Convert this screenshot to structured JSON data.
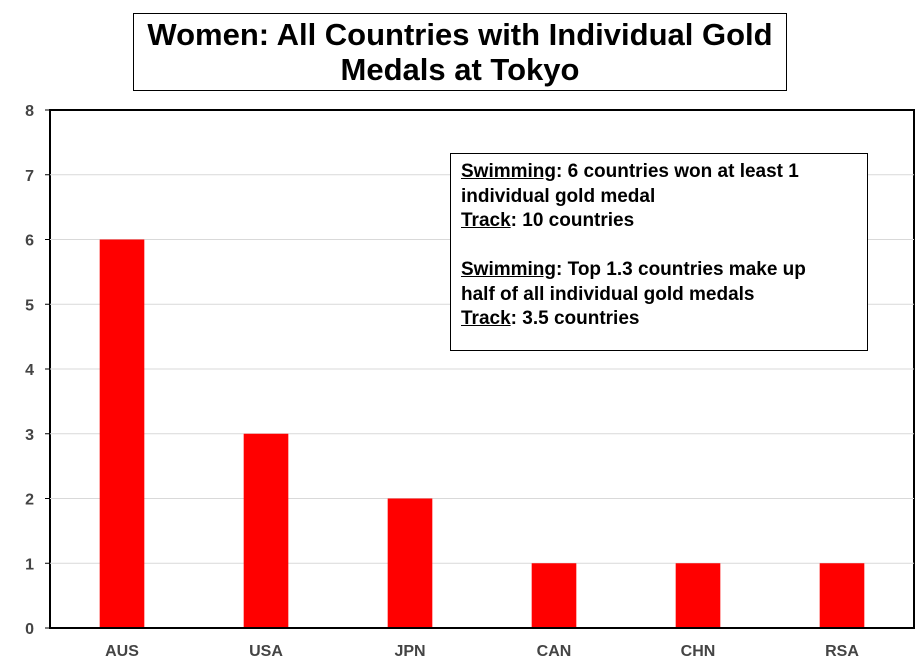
{
  "chart_data": {
    "type": "bar",
    "title_line1": "Women: All Countries with Individual Gold",
    "title_line2": "Medals at Tokyo",
    "xlabel": "",
    "ylabel": "",
    "categories": [
      "AUS",
      "USA",
      "JPN",
      "CAN",
      "CHN",
      "RSA"
    ],
    "values": [
      6,
      3,
      2,
      1,
      1,
      1
    ],
    "ylim": [
      0,
      8
    ],
    "yticks": [
      "0",
      "1",
      "2",
      "3",
      "4",
      "5",
      "6",
      "7",
      "8"
    ],
    "grid": true,
    "bar_color": "#ff0000",
    "annotation": {
      "p1_label": "Swimming",
      "p1_text": ":  6 countries won at least 1",
      "p1_text2": "individual gold medal",
      "p2_label": "Track",
      "p2_text": ": 10 countries",
      "p3_label": "Swimming",
      "p3_text": ":  Top 1.3 countries make up",
      "p3_text2": "half of all individual gold medals",
      "p4_label": "Track",
      "p4_text": ": 3.5 countries"
    }
  }
}
